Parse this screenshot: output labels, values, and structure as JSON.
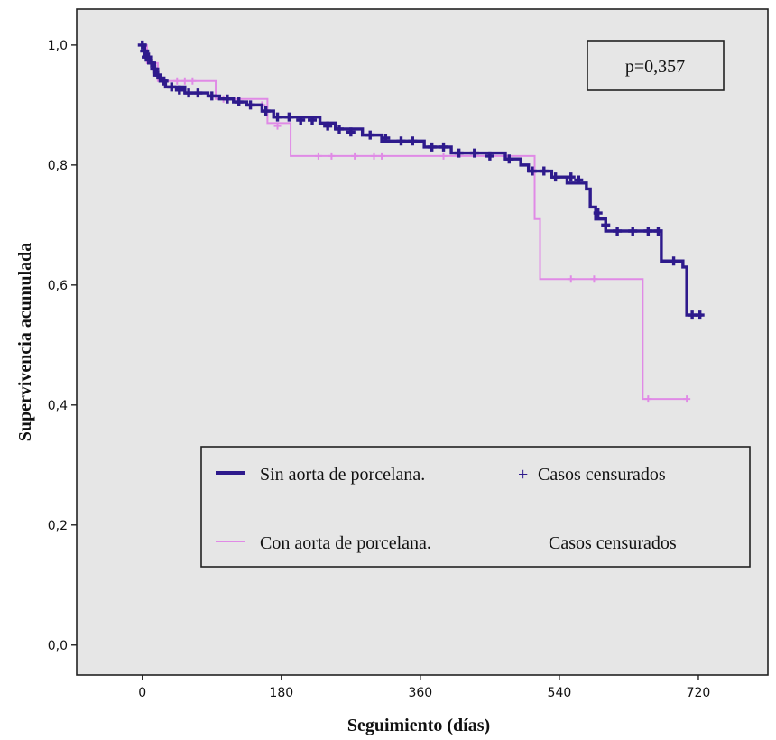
{
  "chart_data": {
    "type": "line",
    "xlabel": "Seguimiento (días)",
    "ylabel": "Supervivencia acumulada",
    "xlim": [
      -85,
      810
    ],
    "ylim": [
      -0.05,
      1.06
    ],
    "xticks": [
      0,
      180,
      360,
      540,
      720
    ],
    "yticks": [
      0.0,
      0.2,
      0.4,
      0.6,
      0.8,
      1.0
    ],
    "xtick_labels": [
      "0",
      "180",
      "360",
      "540",
      "720"
    ],
    "ytick_labels": [
      "0,0",
      "0,2",
      "0,4",
      "0,6",
      "0,8",
      "1,0"
    ],
    "annotation": "p=0,357",
    "legend": {
      "placement": "bottom-right",
      "entries": [
        {
          "series_label": "Sin aorta de porcelana.",
          "censor_symbol": "+",
          "censor_label": "Casos censurados"
        },
        {
          "series_label": "Con aorta de porcelana.",
          "censor_symbol": "",
          "censor_label": "Casos censurados"
        }
      ]
    },
    "series": [
      {
        "name": "Sin aorta de porcelana.",
        "color": "#2e1a8c",
        "steps": [
          [
            0,
            1.0
          ],
          [
            3,
            0.99
          ],
          [
            6,
            0.98
          ],
          [
            10,
            0.97
          ],
          [
            14,
            0.96
          ],
          [
            18,
            0.95
          ],
          [
            23,
            0.94
          ],
          [
            30,
            0.93
          ],
          [
            55,
            0.92
          ],
          [
            85,
            0.915
          ],
          [
            100,
            0.91
          ],
          [
            118,
            0.905
          ],
          [
            135,
            0.9
          ],
          [
            155,
            0.89
          ],
          [
            170,
            0.88
          ],
          [
            230,
            0.87
          ],
          [
            250,
            0.86
          ],
          [
            285,
            0.85
          ],
          [
            310,
            0.84
          ],
          [
            365,
            0.83
          ],
          [
            400,
            0.82
          ],
          [
            470,
            0.81
          ],
          [
            490,
            0.8
          ],
          [
            500,
            0.79
          ],
          [
            530,
            0.78
          ],
          [
            550,
            0.77
          ],
          [
            575,
            0.76
          ],
          [
            580,
            0.73
          ],
          [
            587,
            0.71
          ],
          [
            600,
            0.69
          ],
          [
            672,
            0.64
          ],
          [
            700,
            0.63
          ],
          [
            705,
            0.55
          ],
          [
            725,
            0.55
          ]
        ],
        "censored": [
          [
            0,
            1.0
          ],
          [
            3,
            0.99
          ],
          [
            5,
            0.98
          ],
          [
            8,
            0.98
          ],
          [
            12,
            0.97
          ],
          [
            16,
            0.96
          ],
          [
            20,
            0.95
          ],
          [
            28,
            0.94
          ],
          [
            38,
            0.93
          ],
          [
            48,
            0.925
          ],
          [
            60,
            0.92
          ],
          [
            72,
            0.92
          ],
          [
            90,
            0.915
          ],
          [
            110,
            0.91
          ],
          [
            125,
            0.905
          ],
          [
            140,
            0.9
          ],
          [
            160,
            0.89
          ],
          [
            175,
            0.88
          ],
          [
            190,
            0.88
          ],
          [
            205,
            0.875
          ],
          [
            220,
            0.875
          ],
          [
            240,
            0.865
          ],
          [
            255,
            0.86
          ],
          [
            270,
            0.855
          ],
          [
            295,
            0.85
          ],
          [
            315,
            0.845
          ],
          [
            335,
            0.84
          ],
          [
            350,
            0.84
          ],
          [
            375,
            0.83
          ],
          [
            390,
            0.83
          ],
          [
            410,
            0.82
          ],
          [
            430,
            0.82
          ],
          [
            450,
            0.815
          ],
          [
            475,
            0.81
          ],
          [
            505,
            0.79
          ],
          [
            520,
            0.79
          ],
          [
            535,
            0.78
          ],
          [
            555,
            0.78
          ],
          [
            565,
            0.775
          ],
          [
            590,
            0.72
          ],
          [
            600,
            0.7
          ],
          [
            615,
            0.69
          ],
          [
            635,
            0.69
          ],
          [
            655,
            0.69
          ],
          [
            668,
            0.69
          ],
          [
            688,
            0.64
          ],
          [
            712,
            0.55
          ],
          [
            722,
            0.55
          ]
        ]
      },
      {
        "name": "Con aorta de porcelana.",
        "color": "#e08ae6",
        "steps": [
          [
            0,
            1.0
          ],
          [
            6,
            0.97
          ],
          [
            20,
            0.94
          ],
          [
            95,
            0.91
          ],
          [
            162,
            0.87
          ],
          [
            192,
            0.815
          ],
          [
            508,
            0.71
          ],
          [
            515,
            0.61
          ],
          [
            648,
            0.41
          ],
          [
            705,
            0.41
          ]
        ],
        "censored": [
          [
            12,
            0.97
          ],
          [
            45,
            0.94
          ],
          [
            55,
            0.94
          ],
          [
            65,
            0.94
          ],
          [
            105,
            0.91
          ],
          [
            125,
            0.905
          ],
          [
            155,
            0.9
          ],
          [
            175,
            0.865
          ],
          [
            228,
            0.815
          ],
          [
            245,
            0.815
          ],
          [
            275,
            0.815
          ],
          [
            300,
            0.815
          ],
          [
            310,
            0.815
          ],
          [
            390,
            0.815
          ],
          [
            470,
            0.815
          ],
          [
            555,
            0.61
          ],
          [
            585,
            0.61
          ],
          [
            655,
            0.41
          ],
          [
            705,
            0.41
          ]
        ]
      }
    ]
  }
}
